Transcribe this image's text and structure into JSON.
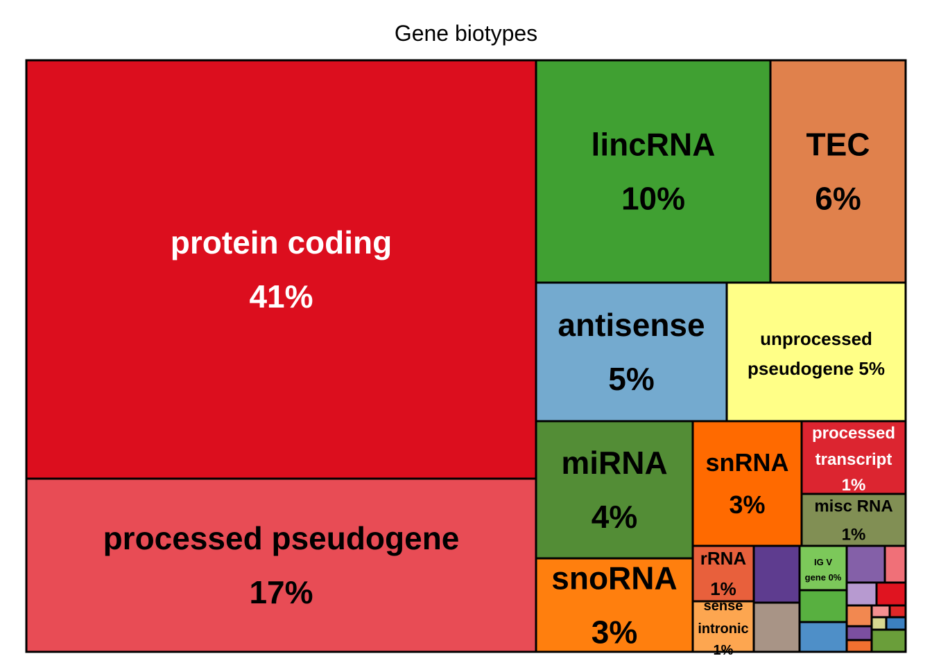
{
  "chart_data": {
    "type": "treemap",
    "title": "Gene biotypes",
    "cells": [
      {
        "label": "protein coding",
        "value_label": "41%",
        "color": "#DC0E1E",
        "text_color": "#ffffff"
      },
      {
        "label": "processed pseudogene",
        "value_label": "17%",
        "color": "#E84C55",
        "text_color": "#000000"
      },
      {
        "label": "lincRNA",
        "value_label": "10%",
        "color": "#40A032",
        "text_color": "#000000"
      },
      {
        "label": "TEC",
        "value_label": "6%",
        "color": "#E0814C",
        "text_color": "#000000"
      },
      {
        "label": "antisense",
        "value_label": "5%",
        "color": "#74AACF",
        "text_color": "#000000"
      },
      {
        "label": "unprocessed pseudogene",
        "value_label": "5%",
        "color": "#FFFF87",
        "text_color": "#000000"
      },
      {
        "label": "miRNA",
        "value_label": "4%",
        "color": "#538D36",
        "text_color": "#000000"
      },
      {
        "label": "snRNA",
        "value_label": "3%",
        "color": "#FF6A00",
        "text_color": "#000000"
      },
      {
        "label": "processed transcript",
        "value_label": "1%",
        "color": "#DC2530",
        "text_color": "#ffffff"
      },
      {
        "label": "misc RNA",
        "value_label": "1%",
        "color": "#818F54",
        "text_color": "#000000"
      },
      {
        "label": "snoRNA",
        "value_label": "3%",
        "color": "#FF7F0E",
        "text_color": "#000000"
      },
      {
        "label": "rRNA",
        "value_label": "1%",
        "color": "#E8603C",
        "text_color": "#000000"
      },
      {
        "label": "sense intronic",
        "value_label": "1%",
        "color": "#FDA650",
        "text_color": "#000000"
      },
      {
        "label": "IG V gene",
        "value_label": "0%",
        "color": "#7CC85A",
        "text_color": "#000000"
      },
      {
        "label": "",
        "value_label": "",
        "color": "#5E3C8F"
      },
      {
        "label": "",
        "value_label": "",
        "color": "#A89486"
      },
      {
        "label": "",
        "value_label": "",
        "color": "#58B040"
      },
      {
        "label": "",
        "value_label": "",
        "color": "#4E8FC8"
      },
      {
        "label": "",
        "value_label": "",
        "color": "#8460A8"
      },
      {
        "label": "",
        "value_label": "",
        "color": "#F07078"
      },
      {
        "label": "",
        "value_label": "",
        "color": "#B79AD0"
      },
      {
        "label": "",
        "value_label": "",
        "color": "#E01420"
      },
      {
        "label": "",
        "value_label": "",
        "color": "#F28850"
      },
      {
        "label": "",
        "value_label": "",
        "color": "#F49090"
      },
      {
        "label": "",
        "value_label": "",
        "color": "#E02828"
      },
      {
        "label": "",
        "value_label": "",
        "color": "#D8D890"
      },
      {
        "label": "",
        "value_label": "",
        "color": "#7B4FA0"
      },
      {
        "label": "",
        "value_label": "",
        "color": "#3C80C0"
      },
      {
        "label": "",
        "value_label": "",
        "color": "#F07030"
      },
      {
        "label": "",
        "value_label": "",
        "color": "#6A9E3A"
      }
    ]
  }
}
